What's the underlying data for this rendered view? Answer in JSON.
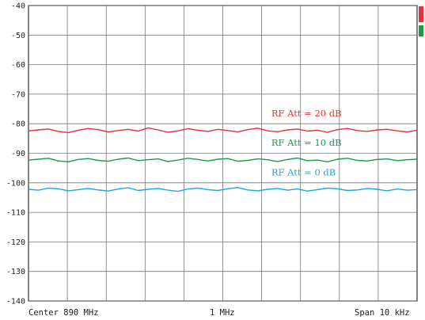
{
  "chart_data": {
    "type": "line",
    "title": "",
    "xlabel": "",
    "ylabel": "",
    "ylim": [
      -140,
      -40
    ],
    "yticks": [
      -40,
      -50,
      -60,
      -70,
      -80,
      -90,
      -100,
      -110,
      -120,
      -130,
      -140
    ],
    "x_divisions": 10,
    "grid": true,
    "footer": {
      "left": "Center 890 MHz",
      "middle": "1 MHz",
      "right": "Span 10 kHz"
    },
    "series": [
      {
        "name": "RF Att = 20 dB",
        "color": "#e8303a",
        "level": -82,
        "values": [
          -82.4,
          -82.1,
          -81.8,
          -82.6,
          -83.0,
          -82.2,
          -81.6,
          -82.0,
          -82.8,
          -82.3,
          -81.9,
          -82.5,
          -81.4,
          -82.1,
          -82.9,
          -82.4,
          -81.7,
          -82.2,
          -82.6,
          -81.9,
          -82.3,
          -82.8,
          -82.0,
          -81.5,
          -82.4,
          -82.7,
          -82.1,
          -81.8,
          -82.5,
          -82.2,
          -82.9,
          -82.0,
          -81.6,
          -82.3,
          -82.6,
          -82.1,
          -81.9,
          -82.4,
          -82.8,
          -82.2
        ]
      },
      {
        "name": "RF Att = 10 dB",
        "color": "#1f9a45",
        "level": -92,
        "values": [
          -92.3,
          -92.0,
          -91.7,
          -92.6,
          -92.9,
          -92.1,
          -91.8,
          -92.4,
          -92.7,
          -92.0,
          -91.6,
          -92.5,
          -92.2,
          -91.9,
          -92.8,
          -92.3,
          -91.7,
          -92.1,
          -92.6,
          -92.0,
          -91.8,
          -92.7,
          -92.4,
          -91.9,
          -92.2,
          -92.8,
          -92.1,
          -91.6,
          -92.5,
          -92.3,
          -92.9,
          -92.0,
          -91.7,
          -92.4,
          -92.6,
          -92.1,
          -91.9,
          -92.5,
          -92.2,
          -92.0
        ]
      },
      {
        "name": "RF Att = 0 dB",
        "color": "#1ea7d8",
        "level": -102,
        "values": [
          -102.2,
          -102.5,
          -101.8,
          -102.0,
          -102.7,
          -102.3,
          -101.9,
          -102.4,
          -102.8,
          -102.1,
          -101.7,
          -102.6,
          -102.2,
          -101.9,
          -102.5,
          -102.9,
          -102.1,
          -101.8,
          -102.3,
          -102.6,
          -102.0,
          -101.6,
          -102.4,
          -102.7,
          -102.2,
          -101.9,
          -102.5,
          -102.1,
          -102.8,
          -102.3,
          -101.8,
          -102.0,
          -102.6,
          -102.4,
          -101.9,
          -102.2,
          -102.7,
          -102.1,
          -102.5,
          -102.3
        ]
      }
    ],
    "annotations": [
      {
        "text": "RF Att = 20 dB",
        "level": -77.5,
        "x_frac": 0.625,
        "color": "#e8303a"
      },
      {
        "text": "RF Att = 10 dB",
        "level": -87.5,
        "x_frac": 0.625,
        "color": "#1f9a45"
      },
      {
        "text": "RF Att = 0 dB",
        "level": -97.5,
        "x_frac": 0.625,
        "color": "#1ea7d8"
      }
    ]
  },
  "markers": [
    {
      "color": "#e8303a"
    },
    {
      "color": "#1f9a45"
    }
  ]
}
